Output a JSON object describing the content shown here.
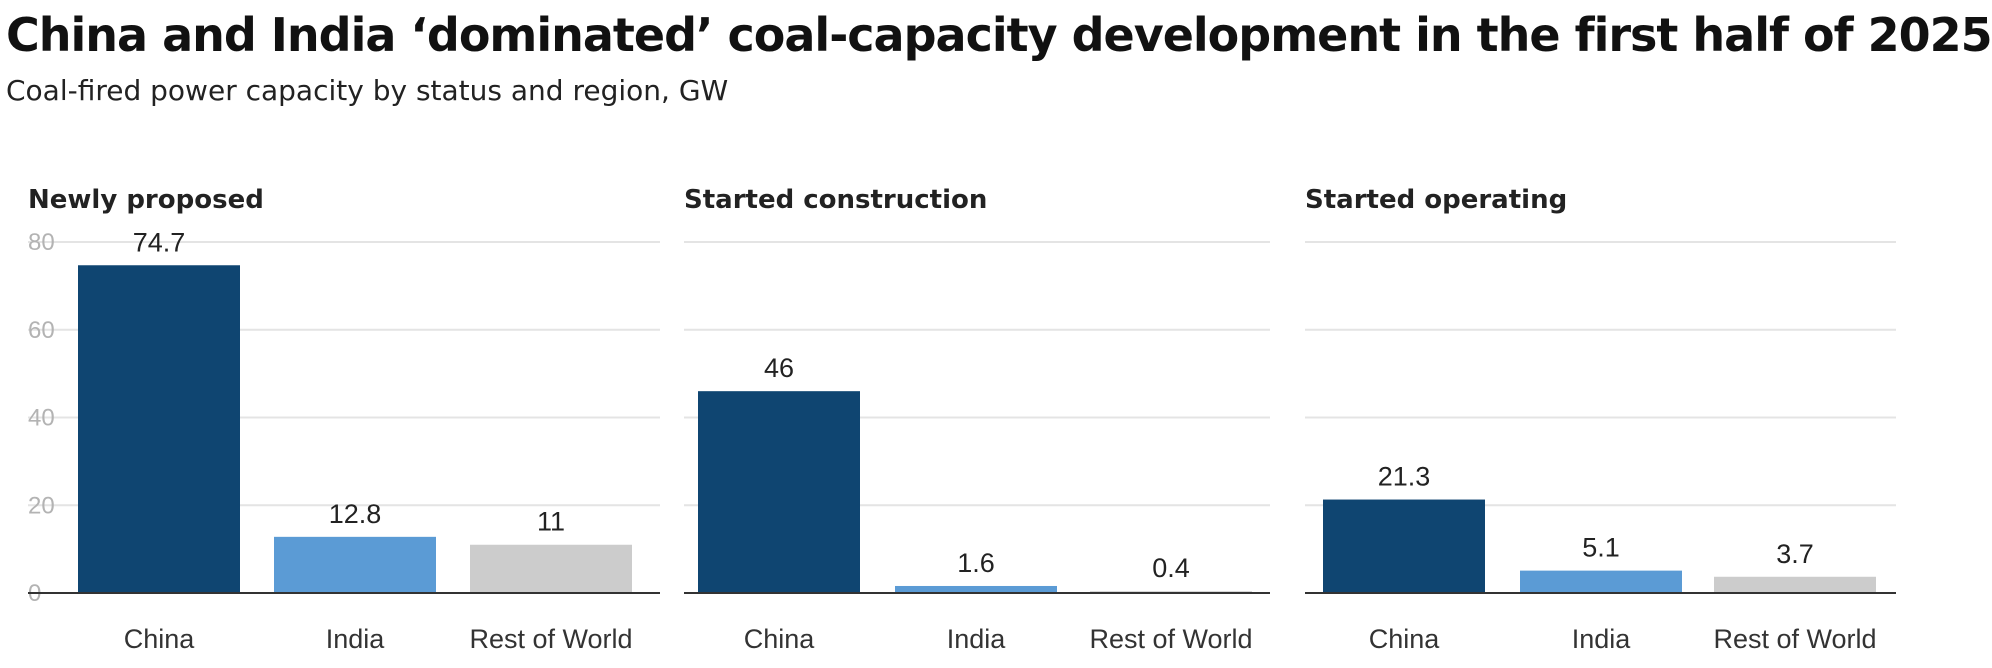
{
  "title": "China and India ‘dominated’ coal-capacity development in the first half of 2025",
  "subtitle": "Coal-fired power capacity by status and region, GW",
  "colors": {
    "China": "#0f4571",
    "India": "#5b9bd5",
    "Rest of World": "#cccccc",
    "grid": "#e4e4e4",
    "axis": "#333333"
  },
  "chart_data": [
    {
      "type": "bar",
      "title": "Newly proposed",
      "categories": [
        "China",
        "India",
        "Rest of World"
      ],
      "values": [
        74.7,
        12.8,
        11
      ],
      "value_labels": [
        "74.7",
        "12.8",
        "11"
      ],
      "ylim": [
        0,
        80
      ],
      "yticks": [
        "0",
        "20",
        "40",
        "60",
        "80"
      ],
      "grid": true
    },
    {
      "type": "bar",
      "title": "Started construction",
      "categories": [
        "China",
        "India",
        "Rest of World"
      ],
      "values": [
        46,
        1.6,
        0.4
      ],
      "value_labels": [
        "46",
        "1.6",
        "0.4"
      ],
      "ylim": [
        0,
        80
      ],
      "grid": true
    },
    {
      "type": "bar",
      "title": "Started operating",
      "categories": [
        "China",
        "India",
        "Rest of World"
      ],
      "values": [
        21.3,
        5.1,
        3.7
      ],
      "value_labels": [
        "21.3",
        "5.1",
        "3.7"
      ],
      "ylim": [
        0,
        80
      ],
      "grid": true
    }
  ]
}
